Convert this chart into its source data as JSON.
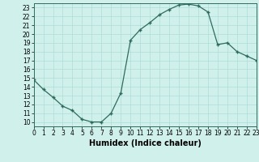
{
  "x": [
    0,
    1,
    2,
    3,
    4,
    5,
    6,
    7,
    8,
    9,
    10,
    11,
    12,
    13,
    14,
    15,
    16,
    17,
    18,
    19,
    20,
    21,
    22,
    23
  ],
  "y": [
    14.8,
    13.7,
    12.8,
    11.8,
    11.3,
    10.3,
    10.0,
    10.0,
    11.0,
    13.3,
    19.3,
    20.5,
    21.3,
    22.2,
    22.8,
    23.3,
    23.4,
    23.2,
    22.5,
    18.8,
    19.0,
    18.0,
    17.5,
    17.0
  ],
  "xlabel": "Humidex (Indice chaleur)",
  "xlim": [
    0,
    23
  ],
  "ylim": [
    9.5,
    23.5
  ],
  "yticks": [
    10,
    11,
    12,
    13,
    14,
    15,
    16,
    17,
    18,
    19,
    20,
    21,
    22,
    23
  ],
  "xticks": [
    0,
    1,
    2,
    3,
    4,
    5,
    6,
    7,
    8,
    9,
    10,
    11,
    12,
    13,
    14,
    15,
    16,
    17,
    18,
    19,
    20,
    21,
    22,
    23
  ],
  "line_color": "#2e6b5e",
  "bg_color": "#cff0eb",
  "grid_color": "#aeddda",
  "tick_fontsize": 5.5,
  "label_fontsize": 7
}
